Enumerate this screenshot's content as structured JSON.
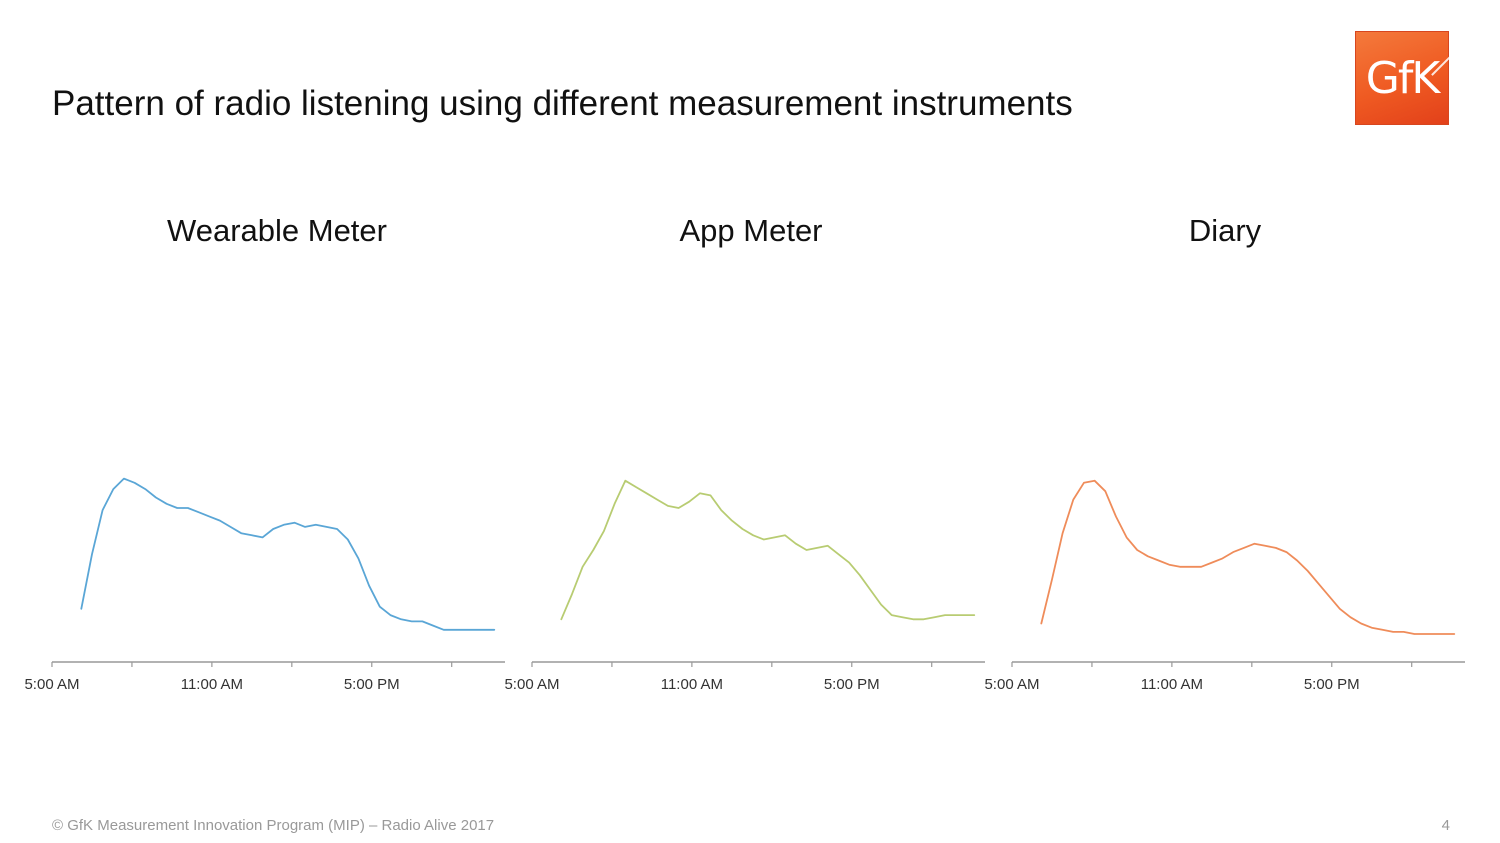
{
  "slide": {
    "title": "Pattern of radio listening using different measurement instruments",
    "logo_text": "GfK",
    "footer": "© GfK Measurement Innovation Program (MIP) – Radio Alive 2017",
    "page_number": "4",
    "brand_color": "#ef5a22"
  },
  "chart_data": [
    {
      "type": "line",
      "title": "Wearable Meter",
      "color": "#5aa6d6",
      "x_tick_labels": [
        "5:00 AM",
        "11:00 AM",
        "5:00 PM"
      ],
      "x_tick_hours": [
        5,
        11,
        17
      ],
      "xlim": [
        5,
        22
      ],
      "ylim": [
        0,
        100
      ],
      "y_axis_labels": false,
      "grid": false,
      "x": [
        6.1,
        6.5,
        6.9,
        7.3,
        7.7,
        8.1,
        8.5,
        8.9,
        9.3,
        9.7,
        10.1,
        10.5,
        10.9,
        11.3,
        11.7,
        12.1,
        12.5,
        12.9,
        13.3,
        13.7,
        14.1,
        14.5,
        14.9,
        15.3,
        15.7,
        16.1,
        16.5,
        16.9,
        17.3,
        17.7,
        18.1,
        18.5,
        18.9,
        19.3,
        19.7,
        20.1,
        20.5,
        20.9,
        21.3,
        21.6
      ],
      "y": [
        22,
        48,
        69,
        79,
        84,
        82,
        79,
        75,
        72,
        70,
        70,
        68,
        66,
        64,
        61,
        58,
        57,
        56,
        60,
        62,
        63,
        61,
        62,
        61,
        60,
        55,
        46,
        33,
        23,
        19,
        17,
        16,
        16,
        14,
        12,
        12,
        12,
        12,
        12,
        12
      ]
    },
    {
      "type": "line",
      "title": "App Meter",
      "color": "#b8cc72",
      "x_tick_labels": [
        "5:00 AM",
        "11:00 AM",
        "5:00 PM"
      ],
      "x_tick_hours": [
        5,
        11,
        17
      ],
      "xlim": [
        5,
        22
      ],
      "ylim": [
        0,
        100
      ],
      "y_axis_labels": false,
      "grid": false,
      "x": [
        6.1,
        6.5,
        6.9,
        7.3,
        7.7,
        8.1,
        8.5,
        8.9,
        9.3,
        9.7,
        10.1,
        10.5,
        10.9,
        11.3,
        11.7,
        12.1,
        12.5,
        12.9,
        13.3,
        13.7,
        14.1,
        14.5,
        14.9,
        15.3,
        15.7,
        16.1,
        16.5,
        16.9,
        17.3,
        17.7,
        18.1,
        18.5,
        18.9,
        19.3,
        19.7,
        20.1,
        20.5,
        20.9,
        21.3,
        21.6
      ],
      "y": [
        17,
        29,
        42,
        50,
        59,
        72,
        83,
        80,
        77,
        74,
        71,
        70,
        73,
        77,
        76,
        69,
        64,
        60,
        57,
        55,
        56,
        57,
        53,
        50,
        51,
        52,
        48,
        44,
        38,
        31,
        24,
        19,
        18,
        17,
        17,
        18,
        19,
        19,
        19,
        19
      ]
    },
    {
      "type": "line",
      "title": "Diary",
      "color": "#ef8c5a",
      "x_tick_labels": [
        "5:00 AM",
        "11:00 AM",
        "5:00 PM"
      ],
      "x_tick_hours": [
        5,
        11,
        17
      ],
      "xlim": [
        5,
        22
      ],
      "ylim": [
        0,
        100
      ],
      "y_axis_labels": false,
      "grid": false,
      "x": [
        6.1,
        6.5,
        6.9,
        7.3,
        7.7,
        8.1,
        8.5,
        8.9,
        9.3,
        9.7,
        10.1,
        10.5,
        10.9,
        11.3,
        11.7,
        12.1,
        12.5,
        12.9,
        13.3,
        13.7,
        14.1,
        14.5,
        14.9,
        15.3,
        15.7,
        16.1,
        16.5,
        16.9,
        17.3,
        17.7,
        18.1,
        18.5,
        18.9,
        19.3,
        19.7,
        20.1,
        20.5,
        20.9,
        21.3,
        21.6
      ],
      "y": [
        15,
        36,
        58,
        74,
        82,
        83,
        78,
        66,
        56,
        50,
        47,
        45,
        43,
        42,
        42,
        42,
        44,
        46,
        49,
        51,
        53,
        52,
        51,
        49,
        45,
        40,
        34,
        28,
        22,
        18,
        15,
        13,
        12,
        11,
        11,
        10,
        10,
        10,
        10,
        10
      ]
    }
  ]
}
